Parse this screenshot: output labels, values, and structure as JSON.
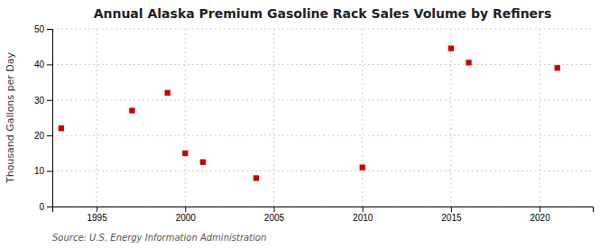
{
  "chart_data": {
    "type": "scatter",
    "title": "Annual Alaska Premium Gasoline Rack Sales Volume by Refiners",
    "ylabel": "Thousand Gallons per Day",
    "source": "Source: U.S. Energy Information Administration",
    "x": [
      1993,
      1997,
      1999,
      2000,
      2001,
      2004,
      2010,
      2015,
      2016,
      2021
    ],
    "values": [
      22,
      27,
      32,
      15,
      12.5,
      8,
      11,
      44.5,
      40.5,
      39
    ],
    "color": "#cc0000",
    "marker": "square",
    "xlim": [
      1992.5,
      2023
    ],
    "ylim": [
      0,
      50
    ],
    "xticks": [
      1995,
      2000,
      2005,
      2010,
      2015,
      2020
    ],
    "yticks": [
      0,
      10,
      20,
      30,
      40,
      50
    ],
    "grid": true
  }
}
